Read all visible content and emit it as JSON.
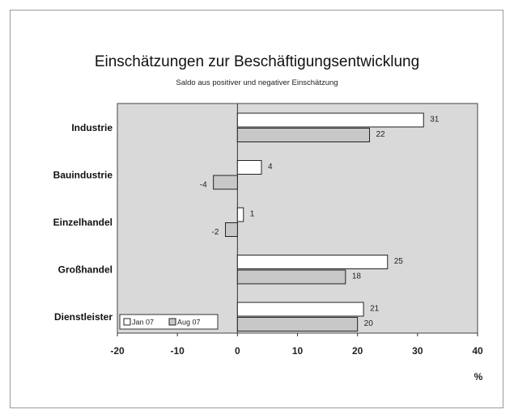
{
  "chart_data": {
    "type": "bar",
    "orientation": "horizontal",
    "title": "Einschätzungen zur Beschäftigungsentwicklung",
    "subtitle": "Saldo aus positiver und negativer Einschätzung",
    "categories": [
      "Industrie",
      "Bauindustrie",
      "Einzelhandel",
      "Großhandel",
      "Dienstleister"
    ],
    "series": [
      {
        "name": "Jan 07",
        "values": [
          31,
          4,
          1,
          25,
          21
        ],
        "color": "#ffffff"
      },
      {
        "name": "Aug 07",
        "values": [
          22,
          -4,
          -2,
          18,
          20
        ],
        "color": "#c8c8c8"
      }
    ],
    "xlim": [
      -20,
      40
    ],
    "xticks": [
      "-20",
      "-10",
      "0",
      "10",
      "20",
      "30",
      "40"
    ],
    "xunit": "%",
    "plot_background": "#d9d9d9",
    "legend_position": "bottom-left",
    "grid": false
  }
}
